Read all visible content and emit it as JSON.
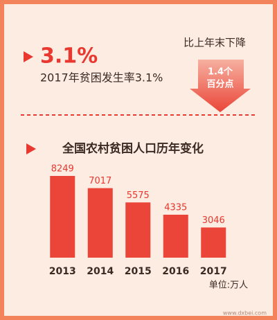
{
  "headline": {
    "figure": "3.1%",
    "caption": "2017年贫困发生率3.1%"
  },
  "change": {
    "label": "比上年末下降",
    "amount": "1.4个",
    "unit": "百分点"
  },
  "chart_data": {
    "type": "bar",
    "title": "全国农村贫困人口历年变化",
    "categories": [
      "2013",
      "2014",
      "2015",
      "2016",
      "2017"
    ],
    "values": [
      8249,
      7017,
      5575,
      4335,
      3046
    ],
    "color": "#ea4538",
    "note": "单位:万人"
  },
  "watermark": "www.dxbei.com"
}
